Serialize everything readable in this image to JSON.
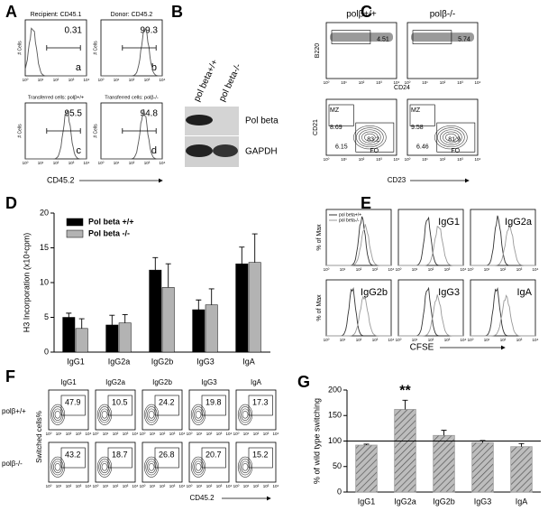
{
  "panel_a": {
    "letter": "A",
    "plots": [
      {
        "title": "Recipient: CD45.1",
        "value": "0.31",
        "tag": "a"
      },
      {
        "title": "Donor: CD45.2",
        "value": "99.3",
        "tag": "b"
      },
      {
        "title": "Transferred cells: polβ+/+",
        "value": "95.5",
        "tag": "c"
      },
      {
        "title": "Transferred cells: polβ-/-",
        "value": "94.8",
        "tag": "d"
      }
    ],
    "y_label": "# Cells",
    "x_label": "CD45.2",
    "log_ticks": [
      "10⁰",
      "10¹",
      "10²",
      "10³",
      "10⁴"
    ]
  },
  "panel_b": {
    "letter": "B",
    "lanes": [
      "pol beta+/+",
      "pol beta-/-"
    ],
    "bands": [
      "Pol beta",
      "GAPDH"
    ]
  },
  "panel_c": {
    "letter": "C",
    "columns": [
      "polβ+/+",
      "polβ-/-"
    ],
    "top": {
      "y_label": "B220",
      "x_label": "CD24",
      "values": [
        "4.51",
        "5.74"
      ]
    },
    "bottom": {
      "y_label": "CD21",
      "x_label": "CD23",
      "gate_labels": [
        "MZ",
        "FO"
      ],
      "values": [
        [
          "8.69",
          "83.2",
          "6.15"
        ],
        [
          "9.58",
          "81.9",
          "6.46"
        ]
      ]
    }
  },
  "panel_d": {
    "letter": "D"
  },
  "panel_e": {
    "letter": "E",
    "legend": [
      "pol beta+/+",
      "pol beta-/-"
    ],
    "plots": [
      "IgG1",
      "IgG2a",
      "IgG2b",
      "IgG3",
      "IgA"
    ],
    "y_label": "% of Max",
    "x_label": "CFSE"
  },
  "panel_f": {
    "letter": "F",
    "columns": [
      "IgG1",
      "IgG2a",
      "IgG2b",
      "IgG3",
      "IgA"
    ],
    "rows": [
      {
        "label": "polβ+/+",
        "values": [
          "47.9",
          "10.5",
          "24.2",
          "19.8",
          "17.3"
        ]
      },
      {
        "label": "polβ-/-",
        "values": [
          "43.2",
          "18.7",
          "26.8",
          "20.7",
          "15.2"
        ]
      }
    ],
    "y_label": "Switched cells%",
    "x_label": "CD45.2"
  },
  "panel_g": {
    "letter": "G"
  },
  "chart_data": [
    {
      "type": "grouped_bar",
      "y_label": "H3 Incorporation (x10⁴cpm)",
      "categories": [
        "IgG1",
        "IgG2a",
        "IgG2b",
        "IgG3",
        "IgA"
      ],
      "series": [
        {
          "name": "Pol beta +/+",
          "color": "#000000",
          "values": [
            5.0,
            3.9,
            11.8,
            6.1,
            12.7
          ],
          "errors": [
            0.6,
            1.4,
            1.8,
            1.4,
            2.4
          ]
        },
        {
          "name": "Pol beta  -/-",
          "color": "#b3b3b3",
          "values": [
            3.4,
            4.2,
            9.3,
            6.8,
            12.9
          ],
          "errors": [
            1.4,
            1.2,
            3.4,
            2.3,
            4.1
          ]
        }
      ],
      "ylim": [
        0,
        20
      ],
      "yticks": [
        0,
        5,
        10,
        15,
        20
      ]
    },
    {
      "type": "hatched_bar",
      "y_label": "% of wild type switching",
      "categories": [
        "IgG1",
        "IgG2a",
        "IgG2b",
        "IgG3",
        "IgA"
      ],
      "values": [
        92,
        162,
        111,
        97,
        89
      ],
      "errors": [
        2,
        18,
        10,
        4,
        6
      ],
      "color": "#9a9a9a",
      "ylim": [
        0,
        200
      ],
      "yticks": [
        0,
        50,
        100,
        150,
        200
      ],
      "reference_line": 100,
      "annotations": [
        {
          "text": "**",
          "category": "IgG2a"
        }
      ]
    }
  ]
}
